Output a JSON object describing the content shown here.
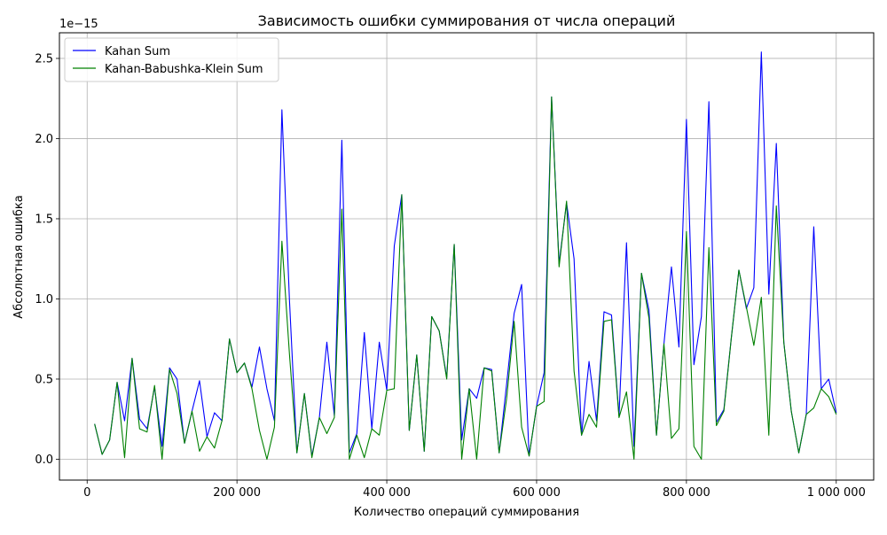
{
  "chart_data": {
    "type": "line",
    "title": "Зависимость ошибки суммирования от числа операций",
    "xlabel": "Количество операций суммирования",
    "ylabel": "Абсолютная ошибка",
    "y_offset_text": "1e−15",
    "xlim": [
      -37000,
      1050000
    ],
    "ylim": [
      -0.13,
      2.66
    ],
    "grid": true,
    "legend_position": "top-left",
    "x_ticks": [
      {
        "value": 0,
        "label": "0"
      },
      {
        "value": 200000,
        "label": "200 000"
      },
      {
        "value": 400000,
        "label": "400 000"
      },
      {
        "value": 600000,
        "label": "600 000"
      },
      {
        "value": 800000,
        "label": "800 000"
      },
      {
        "value": 1000000,
        "label": "1 000 000"
      }
    ],
    "y_ticks": [
      {
        "value": 0.0,
        "label": "0.0"
      },
      {
        "value": 0.5,
        "label": "0.5"
      },
      {
        "value": 1.0,
        "label": "1.0"
      },
      {
        "value": 1.5,
        "label": "1.5"
      },
      {
        "value": 2.0,
        "label": "2.0"
      },
      {
        "value": 2.5,
        "label": "2.5"
      }
    ],
    "x": [
      10000,
      20000,
      30000,
      40000,
      50000,
      60000,
      70000,
      80000,
      90000,
      100000,
      110000,
      120000,
      130000,
      140000,
      150000,
      160000,
      170000,
      180000,
      190000,
      200000,
      210000,
      220000,
      230000,
      240000,
      250000,
      260000,
      270000,
      280000,
      290000,
      300000,
      310000,
      320000,
      330000,
      340000,
      350000,
      360000,
      370000,
      380000,
      390000,
      400000,
      410000,
      420000,
      430000,
      440000,
      450000,
      460000,
      470000,
      480000,
      490000,
      500000,
      510000,
      520000,
      530000,
      540000,
      550000,
      560000,
      570000,
      580000,
      590000,
      600000,
      610000,
      620000,
      630000,
      640000,
      650000,
      660000,
      670000,
      680000,
      690000,
      700000,
      710000,
      720000,
      730000,
      740000,
      750000,
      760000,
      770000,
      780000,
      790000,
      800000,
      810000,
      820000,
      830000,
      840000,
      850000,
      860000,
      870000,
      880000,
      890000,
      900000,
      910000,
      920000,
      930000,
      940000,
      950000,
      960000,
      970000,
      980000,
      990000,
      1000000
    ],
    "series": [
      {
        "name": "Kahan Sum",
        "color": "#0000ff",
        "values": [
          0.22,
          0.03,
          0.12,
          0.48,
          0.24,
          0.63,
          0.25,
          0.19,
          0.45,
          0.08,
          0.57,
          0.5,
          0.1,
          0.3,
          0.49,
          0.14,
          0.29,
          0.24,
          0.75,
          0.54,
          0.6,
          0.45,
          0.7,
          0.44,
          0.24,
          2.18,
          1.0,
          0.04,
          0.41,
          0.02,
          0.26,
          0.73,
          0.27,
          1.99,
          0.04,
          0.16,
          0.79,
          0.19,
          0.73,
          0.43,
          1.33,
          1.65,
          0.18,
          0.65,
          0.05,
          0.89,
          0.8,
          0.51,
          1.34,
          0.12,
          0.44,
          0.38,
          0.57,
          0.56,
          0.04,
          0.47,
          0.91,
          1.09,
          0.02,
          0.33,
          0.54,
          2.26,
          1.22,
          1.6,
          1.25,
          0.15,
          0.61,
          0.24,
          0.92,
          0.9,
          0.27,
          1.35,
          0.08,
          1.16,
          0.93,
          0.15,
          0.72,
          1.2,
          0.7,
          2.12,
          0.59,
          0.89,
          2.23,
          0.23,
          0.31,
          0.76,
          1.18,
          0.94,
          1.07,
          2.54,
          1.03,
          1.97,
          0.73,
          0.3,
          0.04,
          0.28,
          1.45,
          0.44,
          0.5,
          0.29
        ]
      },
      {
        "name": "Kahan-Babushka-Klein Sum",
        "color": "#008000",
        "values": [
          0.22,
          0.03,
          0.12,
          0.48,
          0.01,
          0.63,
          0.19,
          0.17,
          0.46,
          0.0,
          0.56,
          0.41,
          0.1,
          0.3,
          0.05,
          0.14,
          0.07,
          0.24,
          0.75,
          0.54,
          0.6,
          0.44,
          0.18,
          0.0,
          0.2,
          1.36,
          0.66,
          0.04,
          0.41,
          0.01,
          0.26,
          0.16,
          0.26,
          1.56,
          0.0,
          0.15,
          0.01,
          0.19,
          0.15,
          0.43,
          0.44,
          1.65,
          0.18,
          0.65,
          0.05,
          0.89,
          0.8,
          0.5,
          1.34,
          0.0,
          0.44,
          0.0,
          0.57,
          0.55,
          0.04,
          0.38,
          0.86,
          0.2,
          0.02,
          0.33,
          0.36,
          2.26,
          1.2,
          1.61,
          0.55,
          0.15,
          0.28,
          0.2,
          0.86,
          0.87,
          0.26,
          0.42,
          0.0,
          1.16,
          0.88,
          0.15,
          0.72,
          0.13,
          0.19,
          1.42,
          0.08,
          0.0,
          1.32,
          0.21,
          0.3,
          0.76,
          1.18,
          0.95,
          0.71,
          1.01,
          0.15,
          1.58,
          0.73,
          0.3,
          0.04,
          0.28,
          0.32,
          0.44,
          0.39,
          0.28
        ]
      }
    ]
  }
}
